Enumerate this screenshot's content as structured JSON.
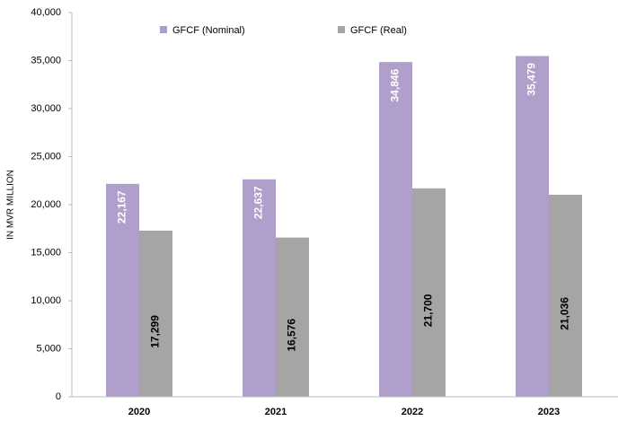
{
  "chart_data": {
    "type": "bar",
    "y_label": "IN MVR MILLION",
    "categories": [
      "2020",
      "2021",
      "2022",
      "2023"
    ],
    "series": [
      {
        "name": "GFCF (Nominal)",
        "color": "#b09fca",
        "values": [
          22167,
          22637,
          34846,
          35479
        ],
        "value_labels": [
          "22,167",
          "22,637",
          "34,846",
          "35,479"
        ],
        "label_color": "#ffffff"
      },
      {
        "name": "GFCF (Real)",
        "color": "#a5a5a5",
        "values": [
          17299,
          16576,
          21700,
          21036
        ],
        "value_labels": [
          "17,299",
          "16,576",
          "21,700",
          "21,036"
        ],
        "label_color": "#000000"
      }
    ],
    "ylim": [
      0,
      40000
    ],
    "yticks": [
      0,
      {
        "value": 5000,
        "label": "5,000"
      },
      {
        "value": 10000,
        "label": "10,000"
      },
      {
        "value": 15000,
        "label": "15,000"
      },
      {
        "value": 20000,
        "label": "20,000"
      },
      {
        "value": 25000,
        "label": "25,000"
      },
      {
        "value": 30000,
        "label": "30,000"
      },
      {
        "value": 35000,
        "label": "35,000"
      },
      {
        "value": 40000,
        "label": "40,000"
      }
    ]
  }
}
